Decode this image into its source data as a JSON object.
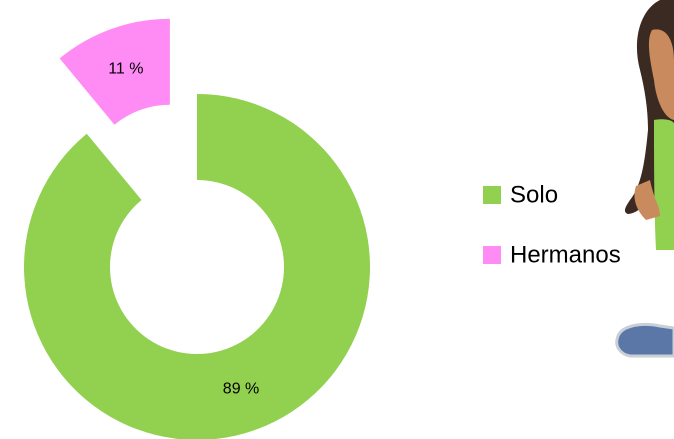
{
  "chart_data": {
    "type": "donut",
    "categories": [
      "Solo",
      "Hermanos"
    ],
    "values": [
      89,
      11
    ],
    "value_labels": [
      "89 %",
      "11 %"
    ],
    "colors": [
      "#92d050",
      "#ff8cf5"
    ],
    "legend": "right"
  }
}
